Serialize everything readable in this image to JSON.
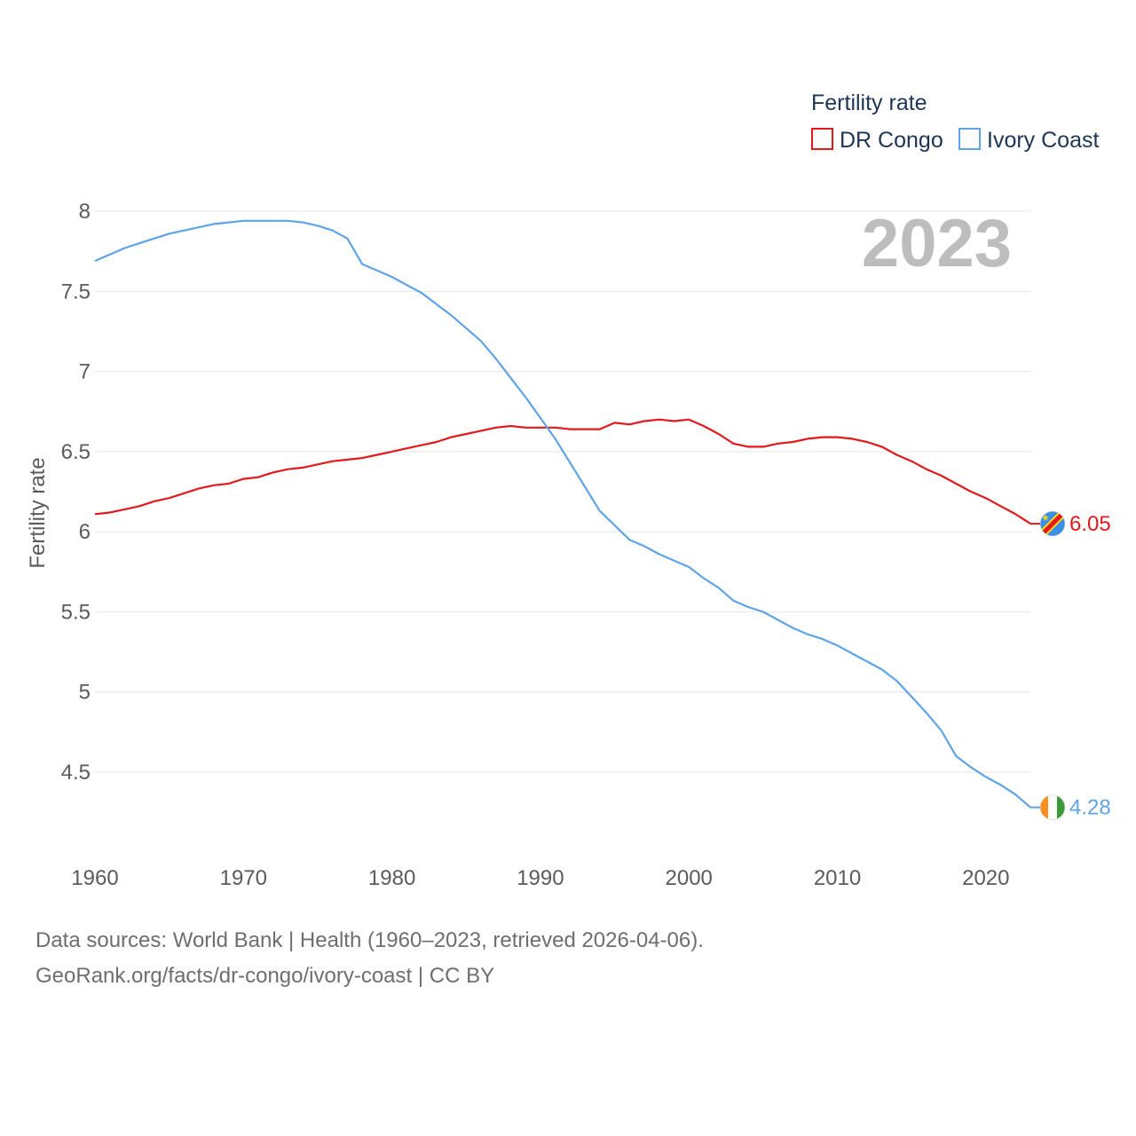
{
  "chart_data": {
    "type": "line",
    "ylabel": "Fertility rate",
    "legend_title": "Fertility rate",
    "legend_position": "top-right",
    "year_label": "2023",
    "xlim": [
      1960,
      2023
    ],
    "ylim": [
      4.0,
      8.2
    ],
    "x_ticks": [
      1960,
      1970,
      1980,
      1990,
      2000,
      2010,
      2020
    ],
    "y_ticks": [
      4.5,
      5,
      5.5,
      6,
      6.5,
      7,
      7.5,
      8
    ],
    "y_tick_labels": [
      "4.5",
      "5",
      "5.5",
      "6",
      "6.5",
      "7",
      "7.5",
      "8"
    ],
    "x_tick_labels": [
      "1960",
      "1970",
      "1980",
      "1990",
      "2000",
      "2010",
      "2020"
    ],
    "grid": true,
    "x": [
      1960,
      1961,
      1962,
      1963,
      1964,
      1965,
      1966,
      1967,
      1968,
      1969,
      1970,
      1971,
      1972,
      1973,
      1974,
      1975,
      1976,
      1977,
      1978,
      1979,
      1980,
      1981,
      1982,
      1983,
      1984,
      1985,
      1986,
      1987,
      1988,
      1989,
      1990,
      1991,
      1992,
      1993,
      1994,
      1995,
      1996,
      1997,
      1998,
      1999,
      2000,
      2001,
      2002,
      2003,
      2004,
      2005,
      2006,
      2007,
      2008,
      2009,
      2010,
      2011,
      2012,
      2013,
      2014,
      2015,
      2016,
      2017,
      2018,
      2019,
      2020,
      2021,
      2022,
      2023
    ],
    "series": [
      {
        "name": "DR Congo",
        "color": "#e3191c",
        "end_label": "6.05",
        "values": [
          6.11,
          6.12,
          6.14,
          6.16,
          6.19,
          6.21,
          6.24,
          6.27,
          6.29,
          6.3,
          6.33,
          6.34,
          6.37,
          6.39,
          6.4,
          6.42,
          6.44,
          6.45,
          6.46,
          6.48,
          6.5,
          6.52,
          6.54,
          6.56,
          6.59,
          6.61,
          6.63,
          6.65,
          6.66,
          6.65,
          6.65,
          6.65,
          6.64,
          6.64,
          6.64,
          6.68,
          6.67,
          6.69,
          6.7,
          6.69,
          6.7,
          6.66,
          6.61,
          6.55,
          6.53,
          6.53,
          6.55,
          6.56,
          6.58,
          6.59,
          6.59,
          6.58,
          6.56,
          6.53,
          6.48,
          6.44,
          6.39,
          6.35,
          6.3,
          6.25,
          6.21,
          6.16,
          6.11,
          6.05
        ]
      },
      {
        "name": "Ivory Coast",
        "color": "#5ea4e6",
        "end_label": "4.28",
        "values": [
          7.69,
          7.73,
          7.77,
          7.8,
          7.83,
          7.86,
          7.88,
          7.9,
          7.92,
          7.93,
          7.94,
          7.94,
          7.94,
          7.94,
          7.93,
          7.91,
          7.88,
          7.83,
          7.67,
          7.63,
          7.59,
          7.54,
          7.49,
          7.42,
          7.35,
          7.27,
          7.19,
          7.08,
          6.96,
          6.84,
          6.71,
          6.58,
          6.43,
          6.28,
          6.13,
          6.04,
          5.95,
          5.91,
          5.86,
          5.82,
          5.78,
          5.71,
          5.65,
          5.57,
          5.53,
          5.5,
          5.45,
          5.4,
          5.36,
          5.33,
          5.29,
          5.24,
          5.19,
          5.14,
          5.07,
          4.97,
          4.87,
          4.76,
          4.6,
          4.53,
          4.47,
          4.42,
          4.36,
          4.28
        ]
      }
    ]
  },
  "footer": {
    "line1": "Data sources: World Bank | Health (1960–2023, retrieved 2026-04-06).",
    "line2": "GeoRank.org/facts/dr-congo/ivory-coast | CC BY"
  },
  "flags": {
    "dr_congo": {
      "field": "#3a8fe8",
      "stripe": "#e3191c",
      "border": "#f7d518",
      "star": "#f7d518"
    },
    "ivory_coast": {
      "left": "#f88f1f",
      "middle": "#ffffff",
      "right": "#3c9a3a"
    }
  }
}
